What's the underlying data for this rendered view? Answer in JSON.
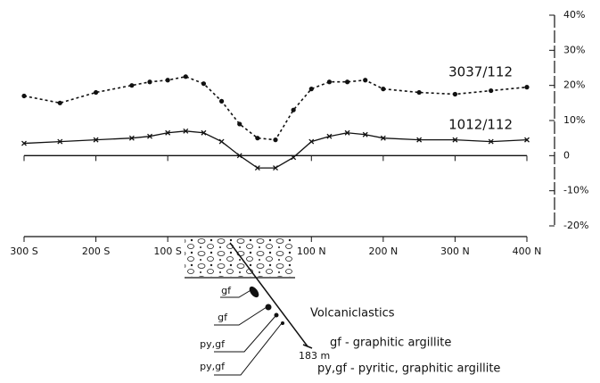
{
  "chart_data": {
    "type": "line",
    "x": [
      -300,
      -250,
      -200,
      -150,
      -125,
      -100,
      -75,
      -50,
      -25,
      0,
      25,
      50,
      75,
      100,
      125,
      150,
      175,
      200,
      250,
      300,
      350,
      400
    ],
    "series": [
      {
        "name": "3037/112",
        "color": "#111111",
        "marker": "dot",
        "values": [
          17,
          15,
          18,
          20,
          21,
          21.5,
          22.5,
          20.5,
          15.5,
          9,
          5,
          4.5,
          13,
          19,
          21,
          21,
          21.5,
          19,
          18,
          17.5,
          18.5,
          19.5
        ]
      },
      {
        "name": "1012/112",
        "color": "#111111",
        "marker": "cross",
        "values": [
          3.5,
          4,
          4.5,
          5,
          5.5,
          6.5,
          7,
          6.5,
          4,
          0,
          -3.5,
          -3.5,
          -0.5,
          4,
          5.5,
          6.5,
          6,
          5,
          4.5,
          4.5,
          4,
          4.5
        ]
      }
    ],
    "xlim": [
      -300,
      400
    ],
    "xticks": [
      {
        "value": -300,
        "label": "300 S"
      },
      {
        "value": -200,
        "label": "200 S"
      },
      {
        "value": -100,
        "label": "100 S"
      },
      {
        "value": 100,
        "label": "100 N"
      },
      {
        "value": 200,
        "label": "200 N"
      },
      {
        "value": 300,
        "label": "300 N"
      },
      {
        "value": 400,
        "label": "400 N"
      }
    ],
    "ylim": [
      -20,
      40
    ],
    "yticks": [
      {
        "value": -20,
        "label": "-20%"
      },
      {
        "value": -10,
        "label": "-10%"
      },
      0,
      {
        "value": 10,
        "label": "10%"
      },
      {
        "value": 20,
        "label": "20%"
      },
      {
        "value": 30,
        "label": "30%"
      },
      {
        "value": 40,
        "label": "40%"
      }
    ],
    "annotations": [
      "gf",
      "gf",
      "py,gf",
      "py,gf",
      "183 m",
      "Volcaniclastics",
      "gf - graphitic argillite",
      "py,gf - pyritic, graphitic argillite"
    ]
  }
}
